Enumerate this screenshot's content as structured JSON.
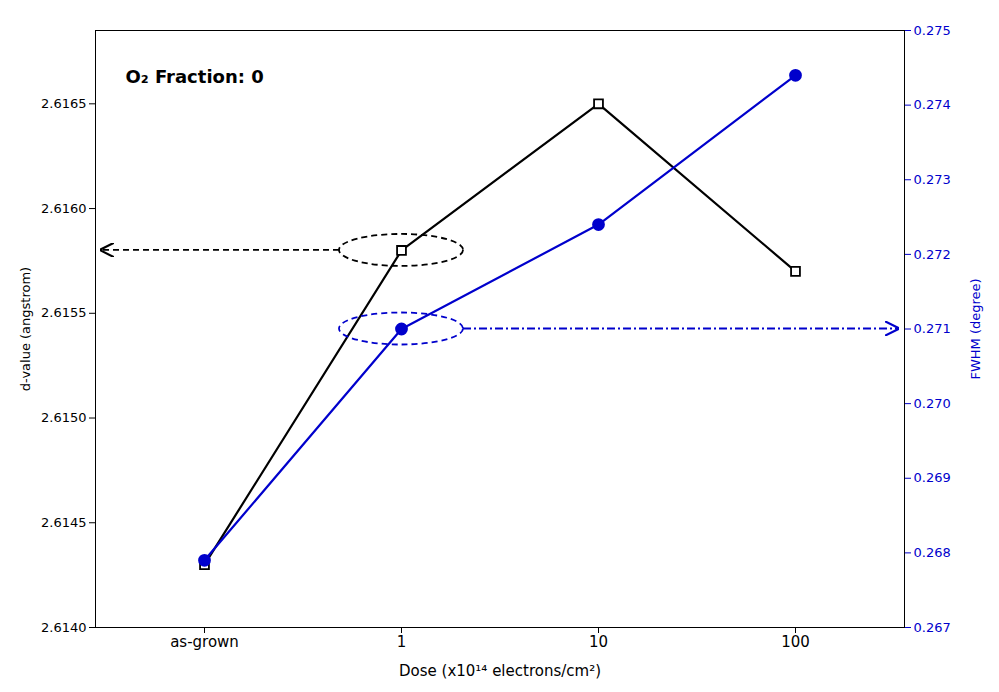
{
  "chart_data": {
    "type": "line",
    "categories": [
      "as-grown",
      "1",
      "10",
      "100"
    ],
    "xlabel": "Dose (x10¹⁴ electrons/cm²)",
    "ylabel": "d-value (angstrom)",
    "y2label": "FWHM (degree)",
    "annotations": [
      "O₂ Fraction: 0"
    ],
    "series": [
      {
        "color": "#000000",
        "marker": "square",
        "line_style": "solid",
        "values": [
          2.6143,
          2.6158,
          2.6165,
          2.6157
        ]
      },
      {
        "axis": "y2",
        "color": "#0000cc",
        "marker": "circle",
        "line_style": "solid",
        "values": [
          0.2679,
          0.271,
          0.2724,
          0.2744
        ]
      }
    ],
    "ylim": [
      2.614,
      2.61685
    ],
    "yticks": [
      {
        "value": 2.614,
        "label": "2.6140"
      },
      2.6145,
      {
        "value": 2.615,
        "label": "2.6150"
      },
      2.6155,
      {
        "value": 2.616,
        "label": "2.6160"
      },
      2.6165
    ],
    "y2lim": [
      0.267,
      0.275
    ],
    "y2ticks": [
      0.267,
      0.268,
      0.269,
      {
        "value": 0.27,
        "label": "0.270"
      },
      0.271,
      0.272,
      0.273,
      0.274,
      0.275
    ],
    "grid": false
  }
}
